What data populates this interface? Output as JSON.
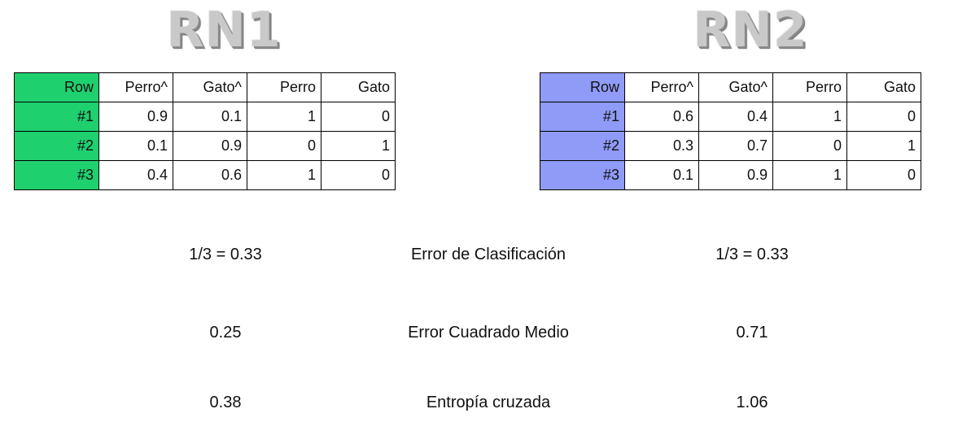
{
  "rn1": {
    "title": "RN1",
    "accent_color": "#1fd06f",
    "headers": [
      "Row",
      "Perro^",
      "Gato^",
      "Perro",
      "Gato"
    ],
    "rows": [
      [
        "#1",
        "0.9",
        "0.1",
        "1",
        "0"
      ],
      [
        "#2",
        "0.1",
        "0.9",
        "0",
        "1"
      ],
      [
        "#3",
        "0.4",
        "0.6",
        "1",
        "0"
      ]
    ]
  },
  "rn2": {
    "title": "RN2",
    "accent_color": "#8f9bf6",
    "headers": [
      "Row",
      "Perro^",
      "Gato^",
      "Perro",
      "Gato"
    ],
    "rows": [
      [
        "#1",
        "0.6",
        "0.4",
        "1",
        "0"
      ],
      [
        "#2",
        "0.3",
        "0.7",
        "0",
        "1"
      ],
      [
        "#3",
        "0.1",
        "0.9",
        "1",
        "0"
      ]
    ]
  },
  "metrics": [
    {
      "label": "Error de Clasificación",
      "rn1": "1/3 = 0.33",
      "rn2": "1/3 = 0.33"
    },
    {
      "label": "Error Cuadrado Medio",
      "rn1": "0.25",
      "rn2": "0.71"
    },
    {
      "label": "Entropía cruzada",
      "rn1": "0.38",
      "rn2": "1.06"
    }
  ]
}
